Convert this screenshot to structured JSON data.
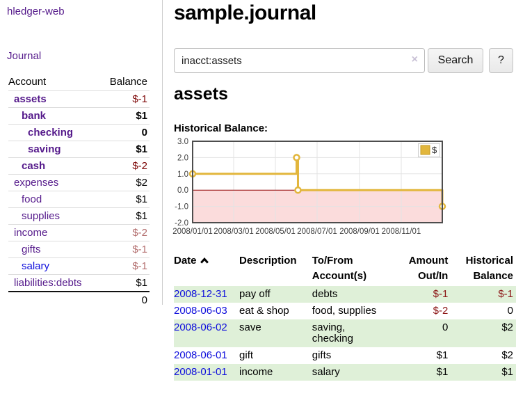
{
  "app": {
    "title": "hledger-web"
  },
  "colors": {
    "accent_purple": "#551a8b",
    "link_blue": "#0f0fdc",
    "negative_strong": "#7d0606",
    "negative_soft": "#b36e6e",
    "negative_table": "#8b1414",
    "row_stripe_green": "#dff0d8"
  },
  "sidebar": {
    "journal_link": "Journal",
    "headers": {
      "account": "Account",
      "balance": "Balance"
    },
    "accounts": [
      {
        "name": "assets",
        "balance": "$-1"
      },
      {
        "name": "bank",
        "balance": "$1"
      },
      {
        "name": "checking",
        "balance": "0"
      },
      {
        "name": "saving",
        "balance": "$1"
      },
      {
        "name": "cash",
        "balance": "$-2"
      },
      {
        "name": "expenses",
        "balance": "$2"
      },
      {
        "name": "food",
        "balance": "$1"
      },
      {
        "name": "supplies",
        "balance": "$1"
      },
      {
        "name": "income",
        "balance": "$-2"
      },
      {
        "name": "gifts",
        "balance": "$-1"
      },
      {
        "name": "salary",
        "balance": "$-1"
      },
      {
        "name": "liabilities:debts",
        "balance": "$1"
      }
    ],
    "total": "0"
  },
  "main": {
    "title": "sample.journal",
    "search": {
      "value": "inacct:assets",
      "clear_icon": "×",
      "search_button": "Search",
      "help_button": "?"
    },
    "account_heading": "assets",
    "chart_label": "Historical Balance:"
  },
  "register": {
    "headers": {
      "date": "Date",
      "description": "Description",
      "tofrom_line1": "To/From",
      "tofrom_line2": "Account(s)",
      "amount_line1": "Amount",
      "amount_line2": "Out/In",
      "balance_line1": "Historical",
      "balance_line2": "Balance"
    },
    "rows": [
      {
        "date": "2008-12-31",
        "description": "pay off",
        "accounts": "debts",
        "amount": "$-1",
        "balance": "$-1"
      },
      {
        "date": "2008-06-03",
        "description": "eat & shop",
        "accounts": "food, supplies",
        "amount": "$-2",
        "balance": "0"
      },
      {
        "date": "2008-06-02",
        "description": "save",
        "accounts": "saving,\nchecking",
        "amount": "0",
        "balance": "$2"
      },
      {
        "date": "2008-06-01",
        "description": "gift",
        "accounts": "gifts",
        "amount": "$1",
        "balance": "$2"
      },
      {
        "date": "2008-01-01",
        "description": "income",
        "accounts": "salary",
        "amount": "$1",
        "balance": "$1"
      }
    ]
  },
  "chart_data": {
    "type": "line",
    "subtype": "step-after",
    "title": "Historical Balance:",
    "ylim": [
      -2,
      3
    ],
    "y_ticks": [
      {
        "value": 3,
        "label": "3.0"
      },
      {
        "value": 2,
        "label": "2.0"
      },
      {
        "value": 1,
        "label": "1.0"
      },
      {
        "value": 0,
        "label": "0.0"
      },
      {
        "value": -1,
        "label": "-1.0"
      },
      {
        "value": -2,
        "label": "-2.0"
      }
    ],
    "x_range_days": [
      0,
      365
    ],
    "x_ticks": [
      {
        "day": 0,
        "label": "2008/01/01"
      },
      {
        "day": 60,
        "label": "2008/03/01"
      },
      {
        "day": 121,
        "label": "2008/05/01"
      },
      {
        "day": 182,
        "label": "2008/07/01"
      },
      {
        "day": 244,
        "label": "2008/09/01"
      },
      {
        "day": 305,
        "label": "2008/11/01"
      }
    ],
    "series": [
      {
        "name": "$",
        "color": "#e2b63c",
        "marker": "circle",
        "points": [
          {
            "date": "2008-01-01",
            "day": 0,
            "value": 1
          },
          {
            "date": "2008-06-01",
            "day": 152,
            "value": 2
          },
          {
            "date": "2008-06-03",
            "day": 154,
            "value": 0
          },
          {
            "date": "2008-12-31",
            "day": 365,
            "value": -1
          }
        ]
      }
    ],
    "zero_line_color": "#8f0000",
    "negative_region_fill": "#fbdcdc",
    "grid_color": "#e3e3e3",
    "border_color": "#4d4d4d",
    "legend": {
      "label": "$",
      "swatch_color": "#e2b63c",
      "position": "top-right"
    }
  }
}
